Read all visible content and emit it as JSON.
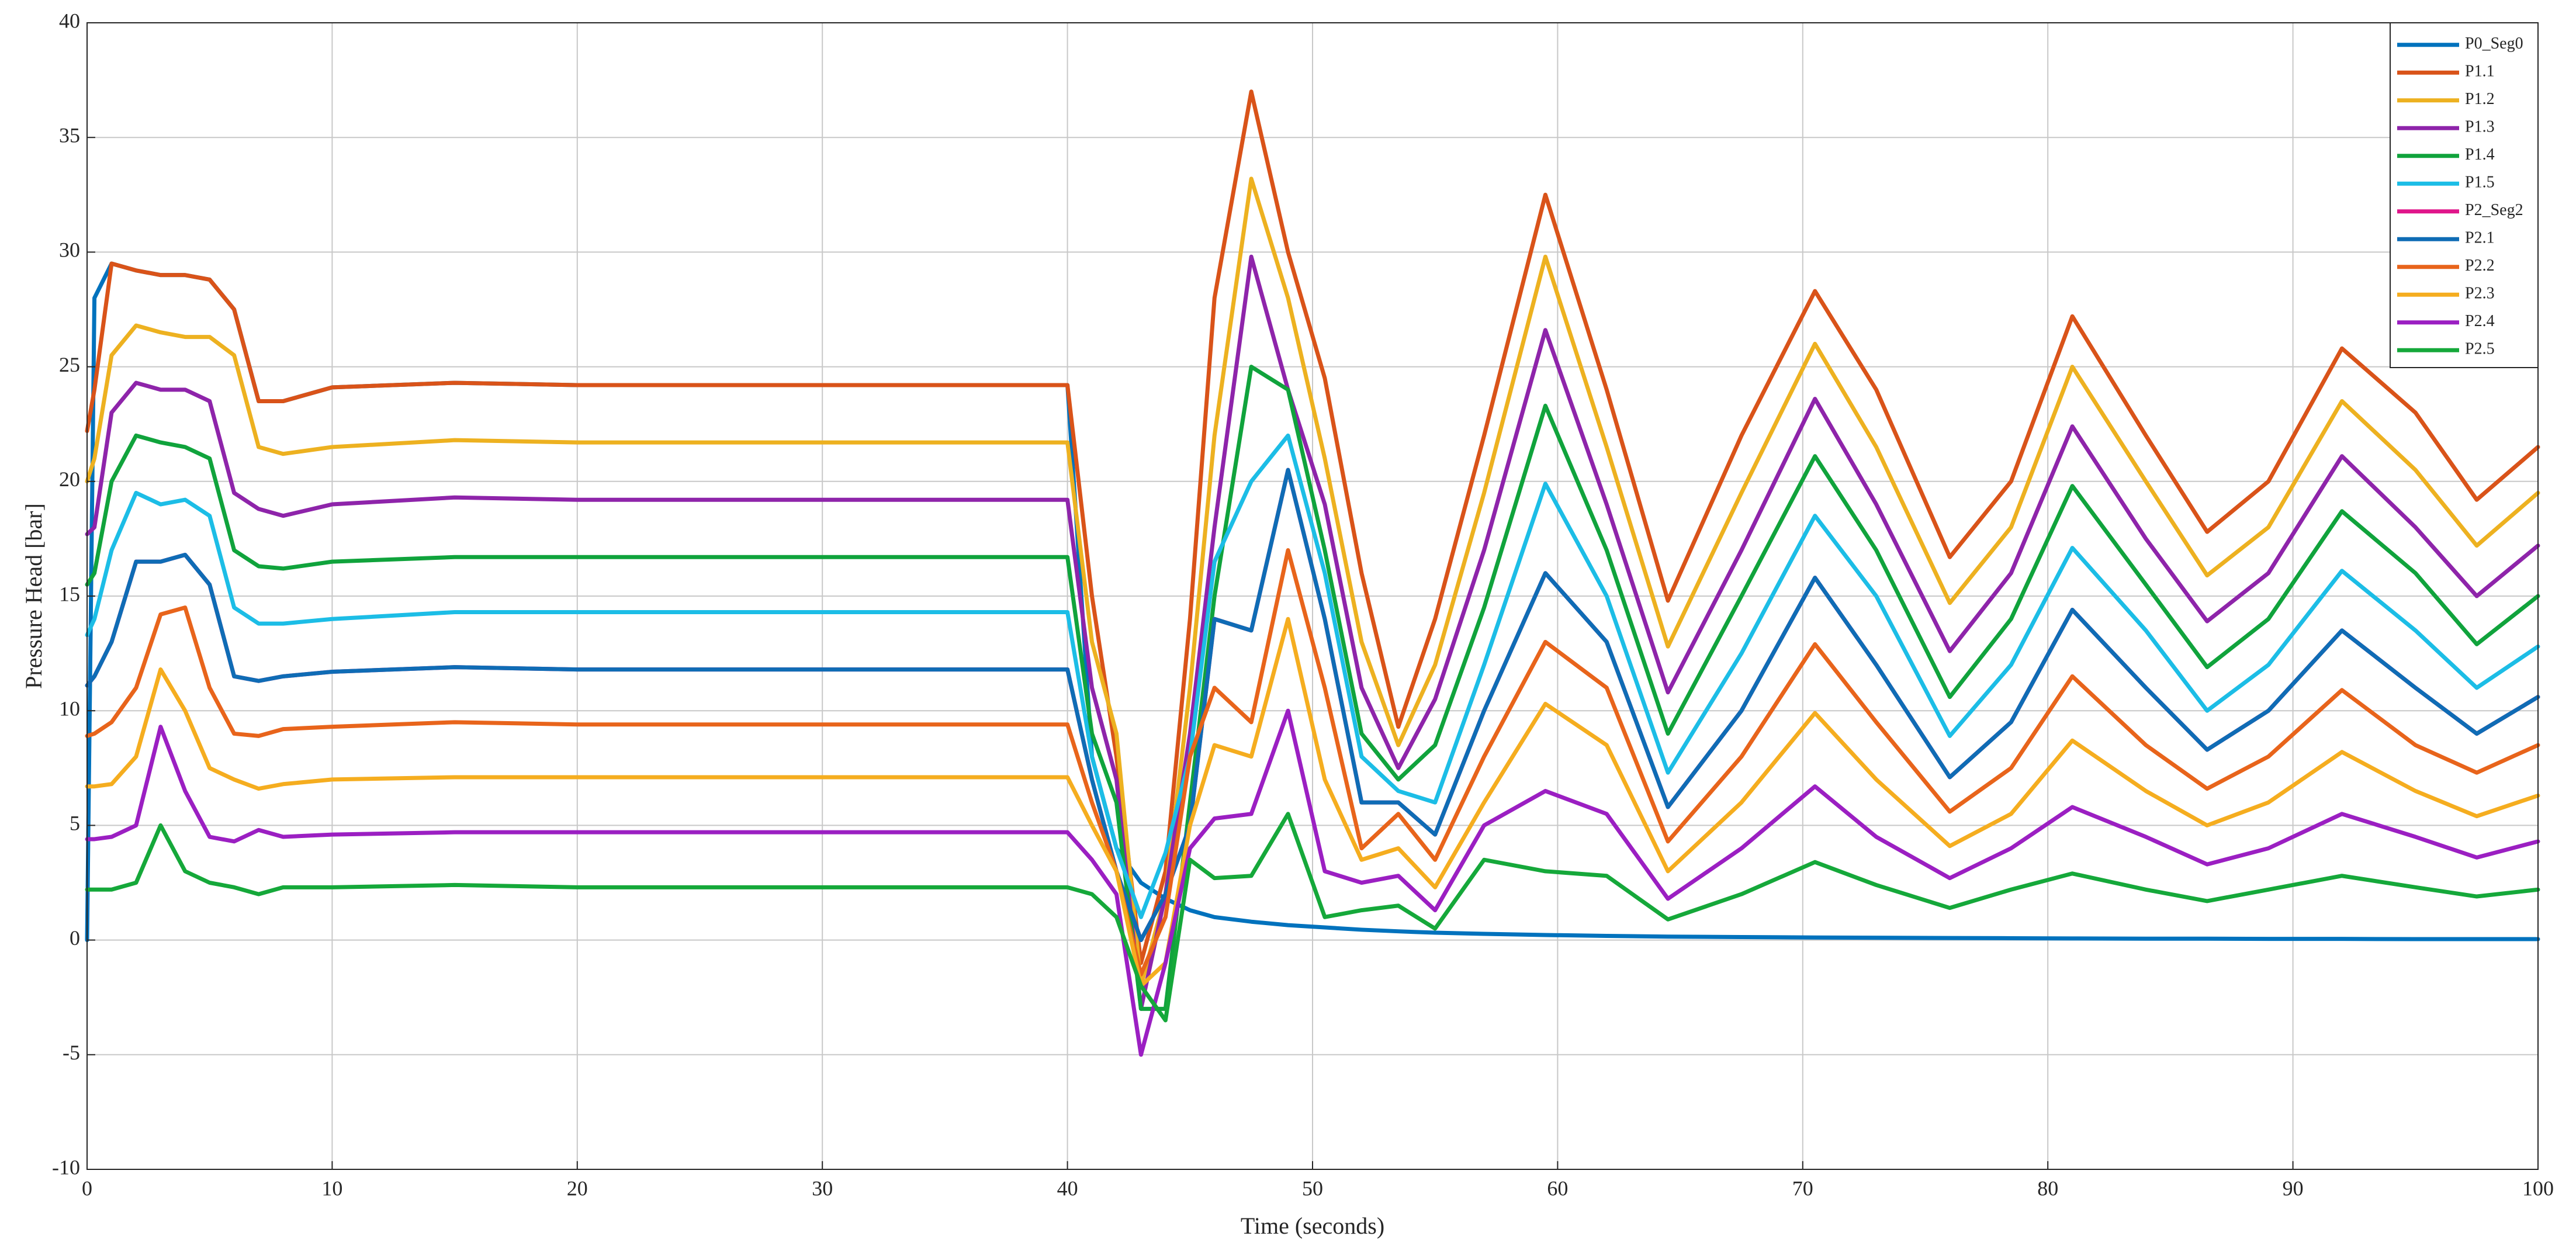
{
  "chart_data": {
    "type": "line",
    "xlabel": "Time (seconds)",
    "ylabel": "Pressure Head [bar]",
    "xlim": [
      0,
      100
    ],
    "ylim": [
      -10,
      40
    ],
    "xticks": [
      0,
      10,
      20,
      30,
      40,
      50,
      60,
      70,
      80,
      90,
      100
    ],
    "yticks": [
      -10,
      -5,
      0,
      5,
      10,
      15,
      20,
      25,
      30,
      35,
      40
    ],
    "grid": true,
    "legend": "northeast",
    "x": [
      0,
      0.3,
      1,
      2,
      3,
      4,
      5,
      6,
      7,
      8,
      10,
      15,
      20,
      30,
      40,
      41,
      42,
      43,
      44,
      45,
      46,
      47.5,
      49,
      50.5,
      52,
      53.5,
      55,
      57,
      59.5,
      62,
      64.5,
      67.5,
      70.5,
      73,
      76,
      78.5,
      81,
      84,
      86.5,
      89,
      92,
      95,
      97.5,
      100
    ],
    "series": [
      {
        "name": "P0_Seg0",
        "color": "#0072bd",
        "values": [
          0,
          28,
          29.5,
          29.2,
          29,
          29,
          28.8,
          27.5,
          23.5,
          23.5,
          24.1,
          24.3,
          24.2,
          24.2,
          24.2,
          8,
          4,
          2.5,
          1.8,
          1.3,
          1.0,
          0.8,
          0.65,
          0.55,
          0.45,
          0.38,
          0.32,
          0.27,
          0.22,
          0.18,
          0.15,
          0.13,
          0.11,
          0.1,
          0.09,
          0.08,
          0.07,
          0.06,
          0.06,
          0.05,
          0.05,
          0.04,
          0.04,
          0.04
        ]
      },
      {
        "name": "P1.1",
        "color": "#d95319",
        "values": [
          22.2,
          24,
          29.5,
          29.2,
          29,
          29,
          28.8,
          27.5,
          23.5,
          23.5,
          24.1,
          24.3,
          24.2,
          24.2,
          24.2,
          15,
          8,
          -1,
          3,
          14,
          28,
          37,
          30,
          24.5,
          16,
          9.3,
          14,
          22,
          32.5,
          24,
          14.8,
          22,
          28.3,
          24,
          16.7,
          20,
          27.2,
          22,
          17.8,
          20,
          25.8,
          23,
          19.2,
          21.5
        ]
      },
      {
        "name": "P1.2",
        "color": "#edb120",
        "values": [
          20,
          21,
          25.5,
          26.8,
          26.5,
          26.3,
          26.3,
          25.5,
          21.5,
          21.2,
          21.5,
          21.8,
          21.7,
          21.7,
          21.7,
          13,
          9,
          -2,
          2,
          11,
          22,
          33.2,
          28,
          21,
          13,
          8.5,
          12,
          19.5,
          29.8,
          21.5,
          12.8,
          19.5,
          26,
          21.5,
          14.7,
          18,
          25,
          20,
          15.9,
          18,
          23.5,
          20.5,
          17.2,
          19.5
        ]
      },
      {
        "name": "P1.3",
        "color": "#8e24aa",
        "values": [
          17.7,
          18,
          23,
          24.3,
          24,
          24,
          23.5,
          19.5,
          18.8,
          18.5,
          19,
          19.3,
          19.2,
          19.2,
          19.2,
          11,
          7,
          -3,
          2,
          9,
          18,
          29.8,
          24,
          19,
          11,
          7.5,
          10.5,
          17,
          26.6,
          19,
          10.8,
          17,
          23.6,
          19,
          12.6,
          16,
          22.4,
          17.5,
          13.9,
          16,
          21.1,
          18,
          15,
          17.2
        ]
      },
      {
        "name": "P1.4",
        "color": "#10a33c",
        "values": [
          15.5,
          16,
          20,
          22,
          21.7,
          21.5,
          21,
          17,
          16.3,
          16.2,
          16.5,
          16.7,
          16.7,
          16.7,
          16.7,
          9,
          6,
          -3,
          -3,
          6,
          15,
          25,
          24,
          17,
          9,
          7,
          8.5,
          14.5,
          23.3,
          17,
          9,
          15,
          21.1,
          17,
          10.6,
          14,
          19.8,
          15.5,
          11.9,
          14,
          18.7,
          16,
          12.9,
          15
        ]
      },
      {
        "name": "P1.5",
        "color": "#1cbde6",
        "values": [
          13.3,
          14,
          17,
          19.5,
          19,
          19.2,
          18.5,
          14.5,
          13.8,
          13.8,
          14,
          14.3,
          14.3,
          14.3,
          14.3,
          8,
          4,
          1,
          3.8,
          8,
          16.5,
          20,
          22,
          16,
          8,
          6.5,
          6,
          12,
          19.9,
          15,
          7.3,
          12.5,
          18.5,
          15,
          8.9,
          12,
          17.1,
          13.5,
          10,
          12,
          16.1,
          13.5,
          11,
          12.8
        ]
      },
      {
        "name": "P2_Seg2",
        "color": "#e0168a",
        "values": [
          11.1,
          11.5,
          13,
          16.5,
          16.5,
          16.8,
          15.5,
          11.5,
          11.3,
          11.5,
          11.7,
          11.9,
          11.8,
          11.8,
          11.8,
          7,
          3,
          0,
          2,
          5,
          14,
          13.5,
          20.5,
          14,
          6,
          6,
          4.6,
          10,
          16,
          13,
          5.8,
          10,
          15.8,
          12,
          7.1,
          9.5,
          14.4,
          11,
          8.3,
          10,
          13.5,
          11,
          9,
          10.6
        ]
      },
      {
        "name": "P2.1",
        "color": "#0f6cb5",
        "values": [
          11.1,
          11.5,
          13,
          16.5,
          16.5,
          16.8,
          15.5,
          11.5,
          11.3,
          11.5,
          11.7,
          11.9,
          11.8,
          11.8,
          11.8,
          7,
          3,
          0,
          2,
          5,
          14,
          13.5,
          20.5,
          14,
          6,
          6,
          4.6,
          10,
          16,
          13,
          5.8,
          10,
          15.8,
          12,
          7.1,
          9.5,
          14.4,
          11,
          8.3,
          10,
          13.5,
          11,
          9,
          10.6
        ]
      },
      {
        "name": "P2.2",
        "color": "#e8641b",
        "values": [
          8.9,
          9,
          9.5,
          11,
          14.2,
          14.5,
          11,
          9,
          8.9,
          9.2,
          9.3,
          9.5,
          9.4,
          9.4,
          9.4,
          6,
          3,
          -1.5,
          1,
          8,
          11,
          9.5,
          17,
          11,
          4,
          5.5,
          3.5,
          8,
          13,
          11,
          4.3,
          8,
          12.9,
          9.5,
          5.6,
          7.5,
          11.5,
          8.5,
          6.6,
          8,
          10.9,
          8.5,
          7.3,
          8.5
        ]
      },
      {
        "name": "P2.3",
        "color": "#f5ad1f",
        "values": [
          6.7,
          6.7,
          6.8,
          8,
          11.8,
          10,
          7.5,
          7,
          6.6,
          6.8,
          7,
          7.1,
          7.1,
          7.1,
          7.1,
          5,
          3,
          -2,
          -1,
          5,
          8.5,
          8,
          14,
          7,
          3.5,
          4,
          2.3,
          6,
          10.3,
          8.5,
          3,
          6,
          9.9,
          7,
          4.1,
          5.5,
          8.7,
          6.5,
          5,
          6,
          8.2,
          6.5,
          5.4,
          6.3
        ]
      },
      {
        "name": "P2.4",
        "color": "#9b1fc2",
        "values": [
          4.4,
          4.4,
          4.5,
          5,
          9.3,
          6.5,
          4.5,
          4.3,
          4.8,
          4.5,
          4.6,
          4.7,
          4.7,
          4.7,
          4.7,
          3.5,
          2,
          -5,
          -1,
          4,
          5.3,
          5.5,
          10,
          3,
          2.5,
          2.8,
          1.3,
          5,
          6.5,
          5.5,
          1.8,
          4,
          6.7,
          4.5,
          2.7,
          4,
          5.8,
          4.5,
          3.3,
          4,
          5.5,
          4.5,
          3.6,
          4.3
        ]
      },
      {
        "name": "P2.5",
        "color": "#15a83a",
        "values": [
          2.2,
          2.2,
          2.2,
          2.5,
          5,
          3,
          2.5,
          2.3,
          2,
          2.3,
          2.3,
          2.4,
          2.3,
          2.3,
          2.3,
          2,
          1,
          -2,
          -3.5,
          3.5,
          2.7,
          2.8,
          5.5,
          1,
          1.3,
          1.5,
          0.5,
          3.5,
          3,
          2.8,
          0.9,
          2,
          3.4,
          2.4,
          1.4,
          2.2,
          2.9,
          2.2,
          1.7,
          2.2,
          2.8,
          2.3,
          1.9,
          2.2
        ]
      }
    ]
  }
}
